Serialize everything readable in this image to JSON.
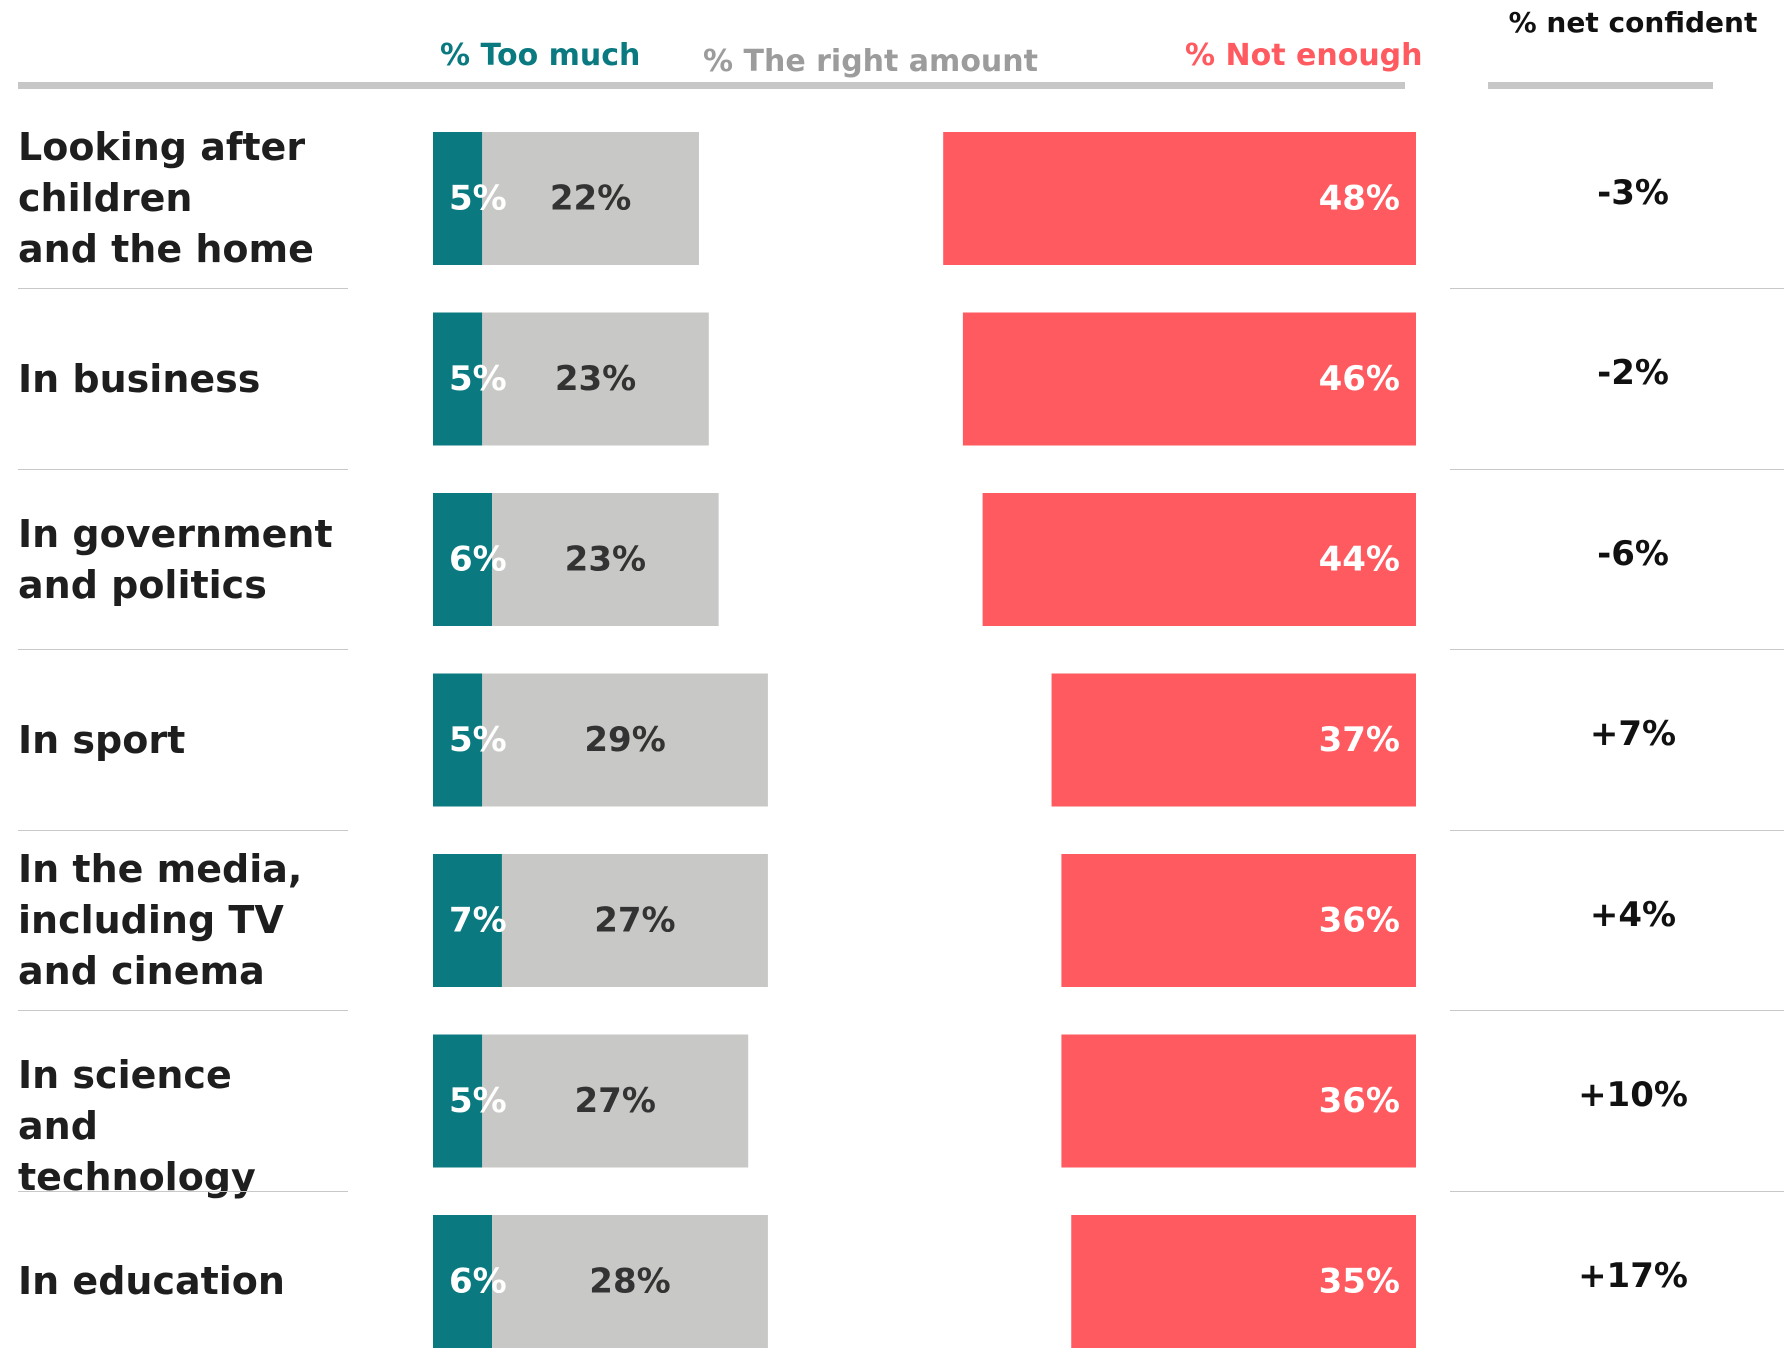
{
  "chart_data": {
    "type": "bar",
    "orientation": "horizontal",
    "stacked": true,
    "headers": {
      "too_much": "% Too much",
      "right_amount": "% The right amount",
      "not_enough": "% Not enough",
      "net_confident": "% net confident"
    },
    "categories": [
      "Looking after children and the home",
      "In business",
      "In government and politics",
      "In sport",
      "In the media, including TV and cinema",
      "In science and technology",
      "In education"
    ],
    "category_lines": [
      "Looking after\nchildren\nand the home",
      "In business",
      "In government\nand politics",
      "In sport",
      "In the media,\nincluding TV\nand cinema",
      "In science\nand technology",
      "In education"
    ],
    "series": [
      {
        "name": "% Too much",
        "color": "#0a7a80",
        "values": [
          5,
          5,
          6,
          5,
          7,
          5,
          6
        ],
        "labels": [
          "5%",
          "5%",
          "6%",
          "5%",
          "7%",
          "5%",
          "6%"
        ]
      },
      {
        "name": "% The right amount",
        "color": "#c8c8c6",
        "values": [
          22,
          23,
          23,
          29,
          27,
          27,
          28
        ],
        "labels": [
          "22%",
          "23%",
          "23%",
          "29%",
          "27%",
          "27%",
          "28%"
        ]
      },
      {
        "name": "% Not enough",
        "color": "#ff5a5f",
        "values": [
          48,
          46,
          44,
          37,
          36,
          36,
          35
        ],
        "labels": [
          "48%",
          "46%",
          "44%",
          "37%",
          "36%",
          "36%",
          "35%"
        ]
      }
    ],
    "net_confident": [
      "-3%",
      "-2%",
      "-6%",
      "+7%",
      "+4%",
      "+10%",
      "+17%"
    ],
    "colors": {
      "too_much": "#0a7a80",
      "right_amount": "#c8c8c6",
      "not_enough": "#ff5a5f",
      "right_amount_text": "#333333",
      "bar_text_light": "#ffffff"
    }
  }
}
